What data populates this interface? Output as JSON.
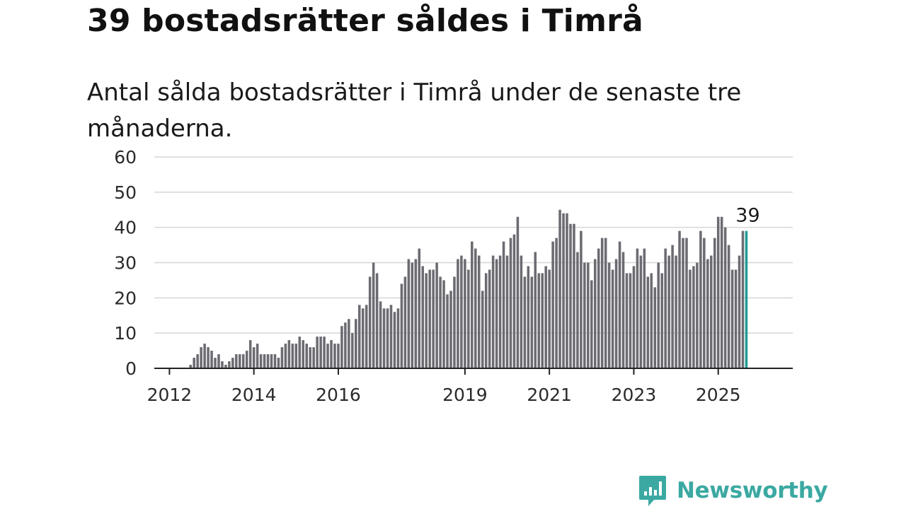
{
  "title": "39 bostadsrätter såldes i Timrå",
  "subtitle": "Antal sålda bostadsrätter i Timrå under de senaste tre månaderna.",
  "brand": {
    "name": "Newsworthy",
    "color": "#3ba9a2",
    "icon": "bar-chart-speech-bubble-icon"
  },
  "chart_data": {
    "type": "bar",
    "title": "39 bostadsrätter såldes i Timrå",
    "subtitle": "Antal sålda bostadsrätter i Timrå under de senaste tre månaderna.",
    "xlabel": "",
    "ylabel": "",
    "ylim": [
      0,
      60
    ],
    "yticks": [
      0,
      10,
      20,
      30,
      40,
      50,
      60
    ],
    "xticks": [
      {
        "label": "2012",
        "year": 2012
      },
      {
        "label": "2014",
        "year": 2014
      },
      {
        "label": "2016",
        "year": 2016
      },
      {
        "label": "2019",
        "year": 2019
      },
      {
        "label": "2021",
        "year": 2021
      },
      {
        "label": "2023",
        "year": 2023
      },
      {
        "label": "2025",
        "year": 2025
      }
    ],
    "grid": true,
    "legend": "none",
    "bar_color": "#6d6b72",
    "highlight_color": "#1e9c95",
    "highlight_label": "39",
    "x_start": "2011-10",
    "x_end": "2025-04",
    "values": [
      0,
      0,
      0,
      0,
      0,
      0,
      0,
      0,
      0,
      1,
      3,
      4,
      6,
      7,
      6,
      5,
      3,
      4,
      2,
      1,
      2,
      3,
      4,
      4,
      4,
      5,
      8,
      6,
      7,
      4,
      4,
      4,
      4,
      4,
      3,
      6,
      7,
      8,
      7,
      7,
      9,
      8,
      7,
      6,
      6,
      9,
      9,
      9,
      7,
      8,
      7,
      7,
      12,
      13,
      14,
      10,
      14,
      18,
      17,
      18,
      26,
      30,
      27,
      19,
      17,
      17,
      18,
      16,
      17,
      24,
      26,
      31,
      30,
      31,
      34,
      29,
      27,
      28,
      28,
      30,
      26,
      25,
      21,
      22,
      26,
      31,
      32,
      31,
      28,
      36,
      34,
      32,
      22,
      27,
      28,
      32,
      31,
      32,
      36,
      32,
      37,
      38,
      43,
      32,
      26,
      29,
      26,
      33,
      27,
      27,
      29,
      28,
      36,
      37,
      45,
      44,
      44,
      41,
      41,
      33,
      39,
      30,
      30,
      25,
      31,
      34,
      37,
      37,
      30,
      28,
      31,
      36,
      33,
      27,
      27,
      29,
      34,
      32,
      34,
      26,
      27,
      23,
      30,
      27,
      34,
      32,
      35,
      32,
      39,
      37,
      37,
      28,
      29,
      30,
      39,
      37,
      31,
      32,
      37,
      43,
      43,
      40,
      35,
      28,
      28,
      32,
      39,
      39
    ]
  }
}
